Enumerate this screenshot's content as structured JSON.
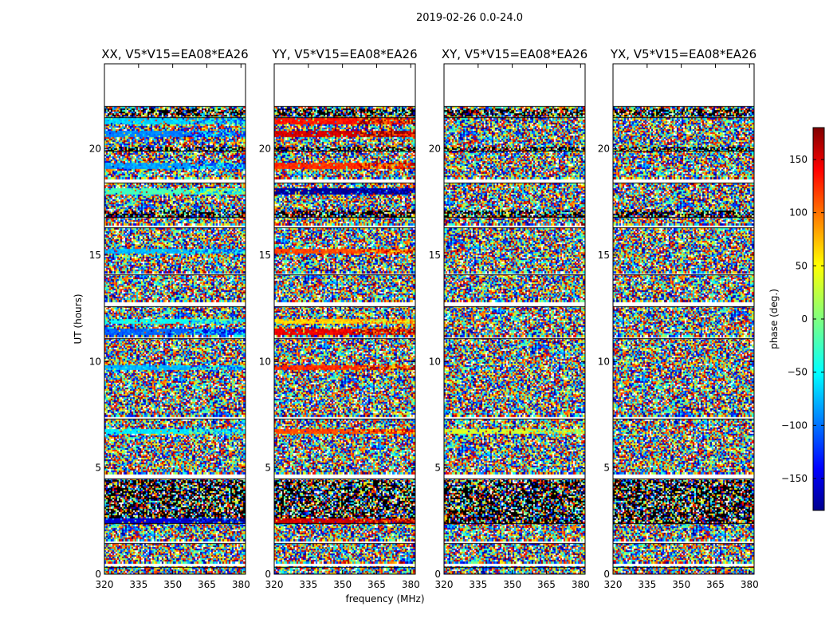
{
  "chart_data": {
    "type": "heatmap",
    "suptitle": "2019-02-26 0.0-24.0",
    "xlabel": "frequency (MHz)",
    "ylabel": "UT (hours)",
    "xlim": [
      320,
      382
    ],
    "ylim": [
      0,
      24
    ],
    "xticks": [
      320,
      335,
      350,
      365,
      380
    ],
    "yticks": [
      0,
      5,
      10,
      15,
      20
    ],
    "colorbar": {
      "label": "phase (deg.)",
      "range": [
        -180,
        180
      ],
      "ticks": [
        -150,
        -100,
        -50,
        0,
        50,
        100,
        150
      ],
      "tick_labels": [
        "−150",
        "−100",
        "−50",
        "0",
        "50",
        "100",
        "150"
      ],
      "colormap": "jet",
      "stops": [
        "#00008f",
        "#0000ff",
        "#00ffff",
        "#7fff7f",
        "#ffff00",
        "#ff0000",
        "#7f0000"
      ]
    },
    "panels": [
      {
        "title": "XX, V5*V15=EA08*EA26",
        "polarization": "XX",
        "coherent_phase_bands": [
          {
            "ut": 21.3,
            "phase": -60
          },
          {
            "ut": 20.7,
            "phase": -90
          },
          {
            "ut": 19.2,
            "phase": -80
          },
          {
            "ut": 18.0,
            "phase": -20
          },
          {
            "ut": 15.2,
            "phase": -70
          },
          {
            "ut": 11.9,
            "phase": -40
          },
          {
            "ut": 11.4,
            "phase": -100
          },
          {
            "ut": 9.7,
            "phase": -70
          },
          {
            "ut": 6.7,
            "phase": -50
          },
          {
            "ut": 2.5,
            "phase": -150
          }
        ]
      },
      {
        "title": "YY, V5*V15=EA08*EA26",
        "polarization": "YY",
        "coherent_phase_bands": [
          {
            "ut": 21.3,
            "phase": 130
          },
          {
            "ut": 20.7,
            "phase": 150
          },
          {
            "ut": 19.2,
            "phase": 120
          },
          {
            "ut": 18.0,
            "phase": -170
          },
          {
            "ut": 15.2,
            "phase": 110
          },
          {
            "ut": 11.9,
            "phase": 60
          },
          {
            "ut": 11.4,
            "phase": 140
          },
          {
            "ut": 9.7,
            "phase": 120
          },
          {
            "ut": 6.7,
            "phase": 110
          },
          {
            "ut": 2.5,
            "phase": 150
          }
        ]
      },
      {
        "title": "XY, V5*V15=EA08*EA26",
        "polarization": "XY",
        "coherent_phase_bands": [
          {
            "ut": 6.7,
            "phase": 30
          }
        ]
      },
      {
        "title": "YX, V5*V15=EA08*EA26",
        "polarization": "YX",
        "coherent_phase_bands": []
      }
    ],
    "flagged_ut_gaps": [
      [
        22.0,
        24.0
      ],
      [
        18.4,
        18.6
      ],
      [
        16.3,
        16.4
      ],
      [
        14.1,
        14.2
      ],
      [
        12.6,
        12.8
      ],
      [
        11.1,
        11.2
      ],
      [
        7.3,
        7.4
      ],
      [
        4.5,
        4.7
      ],
      [
        1.45,
        1.55
      ],
      [
        0.35,
        0.55
      ]
    ],
    "dark_ut_bands": [
      [
        2.4,
        4.4
      ],
      [
        16.8,
        17.1
      ],
      [
        19.9,
        20.1
      ],
      [
        21.5,
        21.9
      ]
    ]
  }
}
